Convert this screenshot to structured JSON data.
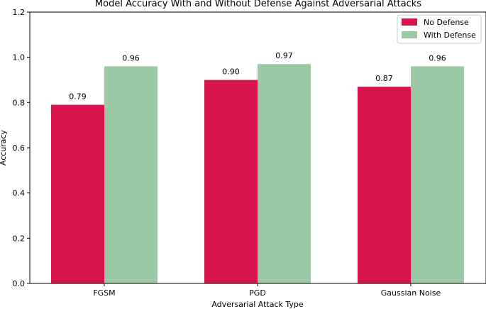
{
  "chart_data": {
    "type": "bar",
    "title": "Model Accuracy With and Without Defense Against Adversarial Attacks",
    "xlabel": "Adversarial Attack Type",
    "ylabel": "Accuracy",
    "categories": [
      "FGSM",
      "PGD",
      "Gaussian Noise"
    ],
    "series": [
      {
        "name": "No Defense",
        "values": [
          0.79,
          0.9,
          0.87
        ],
        "color": "#d8144c",
        "labels": [
          "0.79",
          "0.90",
          "0.87"
        ]
      },
      {
        "name": "With Defense",
        "values": [
          0.96,
          0.97,
          0.96
        ],
        "color": "#9ac9a4",
        "labels": [
          "0.96",
          "0.97",
          "0.96"
        ]
      }
    ],
    "ylim": [
      0,
      1.2
    ],
    "yticks": [
      0.0,
      0.2,
      0.4,
      0.6,
      0.8,
      1.0,
      1.2
    ],
    "ytick_labels": [
      "0.0",
      "0.2",
      "0.4",
      "0.6",
      "0.8",
      "1.0",
      "1.2"
    ],
    "legend_position": "top-right",
    "grid": false
  }
}
